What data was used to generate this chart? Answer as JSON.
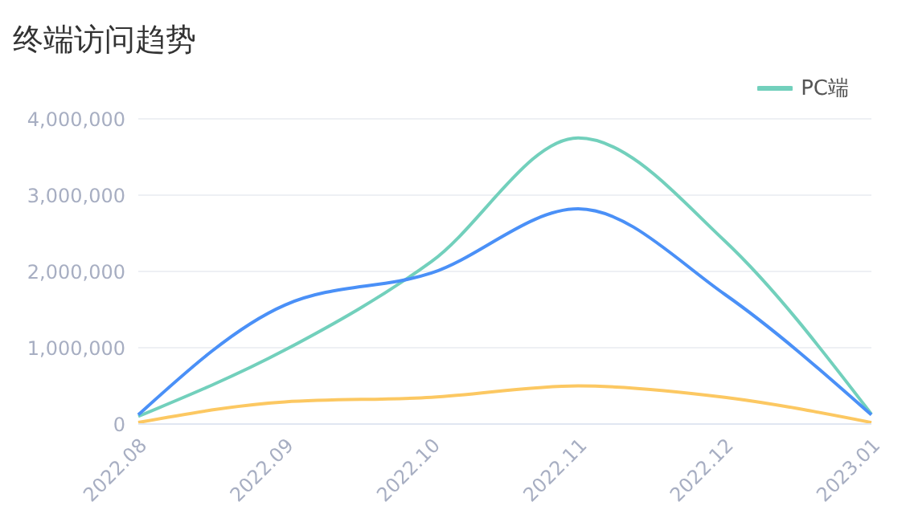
{
  "chart_data": {
    "type": "line",
    "title": "终端访问趋势",
    "categories": [
      "2022.08",
      "2022.09",
      "2022.10",
      "2022.11",
      "2022.12",
      "2023.01"
    ],
    "series": [
      {
        "name": "PC端",
        "color": "#72d0bc",
        "values": [
          100000,
          970000,
          2130000,
          3750000,
          2400000,
          130000
        ]
      },
      {
        "color": "#4a90f7",
        "values": [
          120000,
          1560000,
          1980000,
          2820000,
          1700000,
          120000
        ]
      },
      {
        "color": "#fcc862",
        "values": [
          20000,
          290000,
          350000,
          500000,
          350000,
          20000
        ]
      }
    ],
    "ylim": [
      0,
      4000000
    ],
    "yticks": [
      0,
      {
        "value": 1000000,
        "label": "1,000,000"
      },
      {
        "value": 2000000,
        "label": "2,000,000"
      },
      {
        "value": 3000000,
        "label": "3,000,000"
      },
      {
        "value": 4000000,
        "label": "4,000,000"
      }
    ],
    "grid": "y",
    "legend": "top right",
    "marker": "none"
  }
}
